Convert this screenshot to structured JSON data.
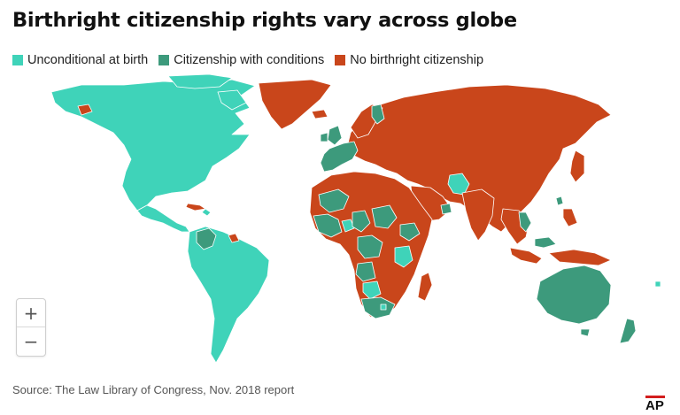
{
  "title": "Birthright citizenship rights vary across globe",
  "legend": [
    {
      "label": "Unconditional at birth",
      "color": "#3fd3b9"
    },
    {
      "label": "Citizenship with conditions",
      "color": "#3d9a7c"
    },
    {
      "label": "No birthright citizenship",
      "color": "#c9461b"
    }
  ],
  "colors": {
    "unconditional": "#3fd3b9",
    "conditional": "#3d9a7c",
    "none": "#c9461b",
    "border": "#ffffff"
  },
  "zoom": {
    "in_label": "+",
    "out_label": "−"
  },
  "source": "Source: The Law Library of Congress, Nov. 2018 report",
  "logo": "AP"
}
